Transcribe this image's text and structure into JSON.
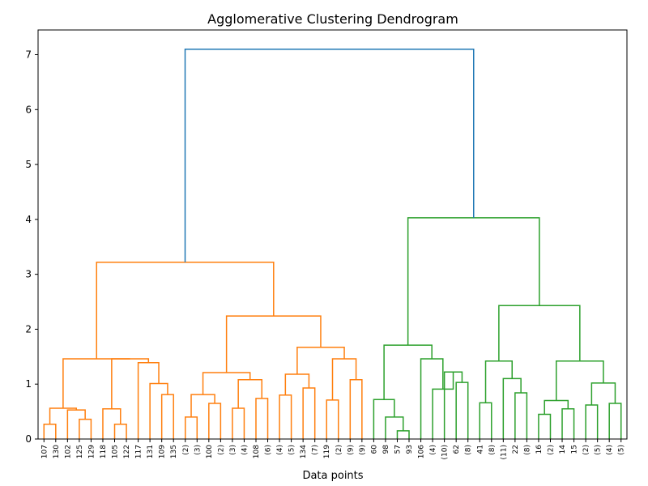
{
  "chart_data": {
    "type": "dendrogram",
    "title": "Agglomerative Clustering Dendrogram",
    "xlabel": "Data points",
    "ylabel": "",
    "ylim": [
      0,
      7.45
    ],
    "yticks": [
      0,
      1,
      2,
      3,
      4,
      5,
      6,
      7
    ],
    "grid": false,
    "leaves": [
      "107",
      "130",
      "102",
      "125",
      "129",
      "118",
      "105",
      "122",
      "117",
      "131",
      "109",
      "135",
      "(2)",
      "(3)",
      "100",
      "(2)",
      "(3)",
      "(4)",
      "108",
      "(6)",
      "(4)",
      "(5)",
      "134",
      "(7)",
      "119",
      "(2)",
      "(9)",
      "(9)",
      "60",
      "98",
      "57",
      "93",
      "106",
      "(4)",
      "(10)",
      "62",
      "(8)",
      "41",
      "(8)",
      "(11)",
      "22",
      "(8)",
      "16",
      "(2)",
      "14",
      "15",
      "(2)",
      "(5)",
      "(4)",
      "(5)"
    ],
    "cluster_colors": [
      "#ff7f0e",
      "#2ca02c",
      "#1f77b4"
    ],
    "merges": [
      {
        "a": "L0",
        "b": "L1",
        "h": 0.27,
        "c": 0
      },
      {
        "a": "L3",
        "b": "L4",
        "h": 0.36,
        "c": 0
      },
      {
        "a": "L2",
        "b": "M1",
        "h": 0.53,
        "c": 0
      },
      {
        "a": "M0",
        "b": "M2",
        "h": 0.56,
        "c": 0
      },
      {
        "a": "L6",
        "b": "L7",
        "h": 0.27,
        "c": 0
      },
      {
        "a": "L5",
        "b": "M4",
        "h": 0.55,
        "c": 0
      },
      {
        "a": "L10",
        "b": "L11",
        "h": 0.81,
        "c": 0
      },
      {
        "a": "L9",
        "b": "M6",
        "h": 1.01,
        "c": 0
      },
      {
        "a": "L8",
        "b": "M7",
        "h": 1.39,
        "c": 0
      },
      {
        "a": "M5",
        "b": "M8",
        "h": 1.46,
        "c": 0
      },
      {
        "a": "M3",
        "b": "M9",
        "h": 1.46,
        "c": 0
      },
      {
        "a": "L12",
        "b": "L13",
        "h": 0.4,
        "c": 0
      },
      {
        "a": "L14",
        "b": "L15",
        "h": 0.65,
        "c": 0
      },
      {
        "a": "M11",
        "b": "M12",
        "h": 0.81,
        "c": 0
      },
      {
        "a": "L16",
        "b": "L17",
        "h": 0.56,
        "c": 0
      },
      {
        "a": "L18",
        "b": "L19",
        "h": 0.74,
        "c": 0
      },
      {
        "a": "M14",
        "b": "M15",
        "h": 1.08,
        "c": 0
      },
      {
        "a": "M13",
        "b": "M16",
        "h": 1.21,
        "c": 0
      },
      {
        "a": "L20",
        "b": "L21",
        "h": 0.8,
        "c": 0
      },
      {
        "a": "L22",
        "b": "L23",
        "h": 0.93,
        "c": 0
      },
      {
        "a": "M18",
        "b": "M19",
        "h": 1.18,
        "c": 0
      },
      {
        "a": "L24",
        "b": "L25",
        "h": 0.71,
        "c": 0
      },
      {
        "a": "L26",
        "b": "L27",
        "h": 1.08,
        "c": 0
      },
      {
        "a": "M21",
        "b": "M22",
        "h": 1.46,
        "c": 0
      },
      {
        "a": "M20",
        "b": "M23",
        "h": 1.67,
        "c": 0
      },
      {
        "a": "M17",
        "b": "M24",
        "h": 2.24,
        "c": 0
      },
      {
        "a": "M10",
        "b": "M25",
        "h": 3.22,
        "c": 0
      },
      {
        "a": "L30",
        "b": "L31",
        "h": 0.15,
        "c": 1
      },
      {
        "a": "L29",
        "b": "M27",
        "h": 0.4,
        "c": 1
      },
      {
        "a": "L28",
        "b": "M28",
        "h": 0.72,
        "c": 1
      },
      {
        "a": "L35",
        "b": "L36",
        "h": 1.03,
        "c": 1
      },
      {
        "a": "L34",
        "b": "M30",
        "h": 1.22,
        "c": 1
      },
      {
        "a": "L33",
        "b": "M31",
        "h": 0.91,
        "c": 1
      },
      {
        "a": "L32",
        "b": "M32",
        "h": 1.46,
        "c": 1
      },
      {
        "a": "M29",
        "b": "M33",
        "h": 1.71,
        "c": 1
      },
      {
        "a": "L37",
        "b": "L38",
        "h": 0.66,
        "c": 1
      },
      {
        "a": "L40",
        "b": "L41",
        "h": 0.84,
        "c": 1
      },
      {
        "a": "L39",
        "b": "M36",
        "h": 1.1,
        "c": 1
      },
      {
        "a": "M35",
        "b": "M37",
        "h": 1.42,
        "c": 1
      },
      {
        "a": "L42",
        "b": "L43",
        "h": 0.45,
        "c": 1
      },
      {
        "a": "L44",
        "b": "L45",
        "h": 0.55,
        "c": 1
      },
      {
        "a": "M39",
        "b": "M40",
        "h": 0.7,
        "c": 1
      },
      {
        "a": "L46",
        "b": "L47",
        "h": 0.62,
        "c": 1
      },
      {
        "a": "L48",
        "b": "L49",
        "h": 0.65,
        "c": 1
      },
      {
        "a": "M42",
        "b": "M43",
        "h": 1.02,
        "c": 1
      },
      {
        "a": "M41",
        "b": "M44",
        "h": 1.42,
        "c": 1
      },
      {
        "a": "M38",
        "b": "M45",
        "h": 2.43,
        "c": 1
      },
      {
        "a": "M34",
        "b": "M46",
        "h": 4.03,
        "c": 1
      },
      {
        "a": "M26",
        "b": "M47",
        "h": 7.1,
        "c": 2
      }
    ]
  }
}
